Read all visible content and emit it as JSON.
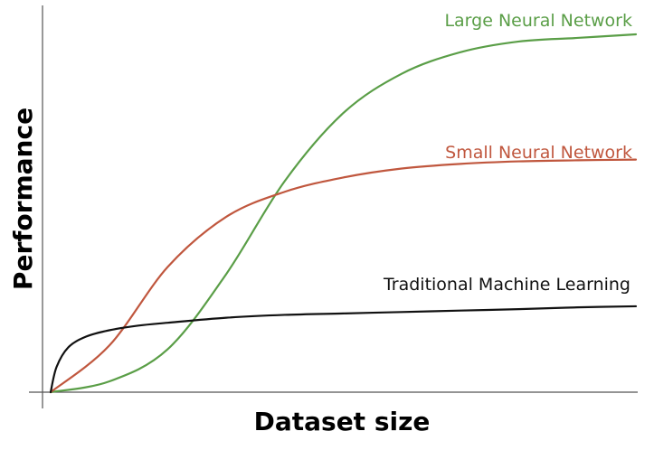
{
  "chart_data": {
    "type": "line",
    "title": "",
    "xlabel": "Dataset size",
    "ylabel": "Performance",
    "xlim": [
      0,
      100
    ],
    "ylim": [
      0,
      100
    ],
    "grid": false,
    "legend": "inline-labels",
    "series": [
      {
        "name": "Large Neural Network",
        "color": "#5a9e47",
        "x": [
          0,
          10,
          20,
          30,
          40,
          50,
          60,
          70,
          80,
          90,
          100
        ],
        "values": [
          0,
          3,
          12,
          33,
          59,
          78,
          89,
          95,
          98,
          99,
          100
        ]
      },
      {
        "name": "Small Neural Network",
        "color": "#c0573e",
        "x": [
          0,
          10,
          20,
          30,
          40,
          50,
          60,
          70,
          80,
          90,
          100
        ],
        "values": [
          0,
          13,
          35,
          49,
          56,
          60,
          62.5,
          63.8,
          64.5,
          64.8,
          65
        ]
      },
      {
        "name": "Traditional Machine Learning",
        "color": "#111111",
        "x": [
          0,
          1,
          3,
          6,
          10,
          15,
          20,
          30,
          40,
          50,
          60,
          70,
          80,
          90,
          100
        ],
        "values": [
          0,
          7,
          12.5,
          15.5,
          17.3,
          18.6,
          19.4,
          20.8,
          21.6,
          22.0,
          22.4,
          22.8,
          23.2,
          23.7,
          24
        ]
      }
    ]
  }
}
